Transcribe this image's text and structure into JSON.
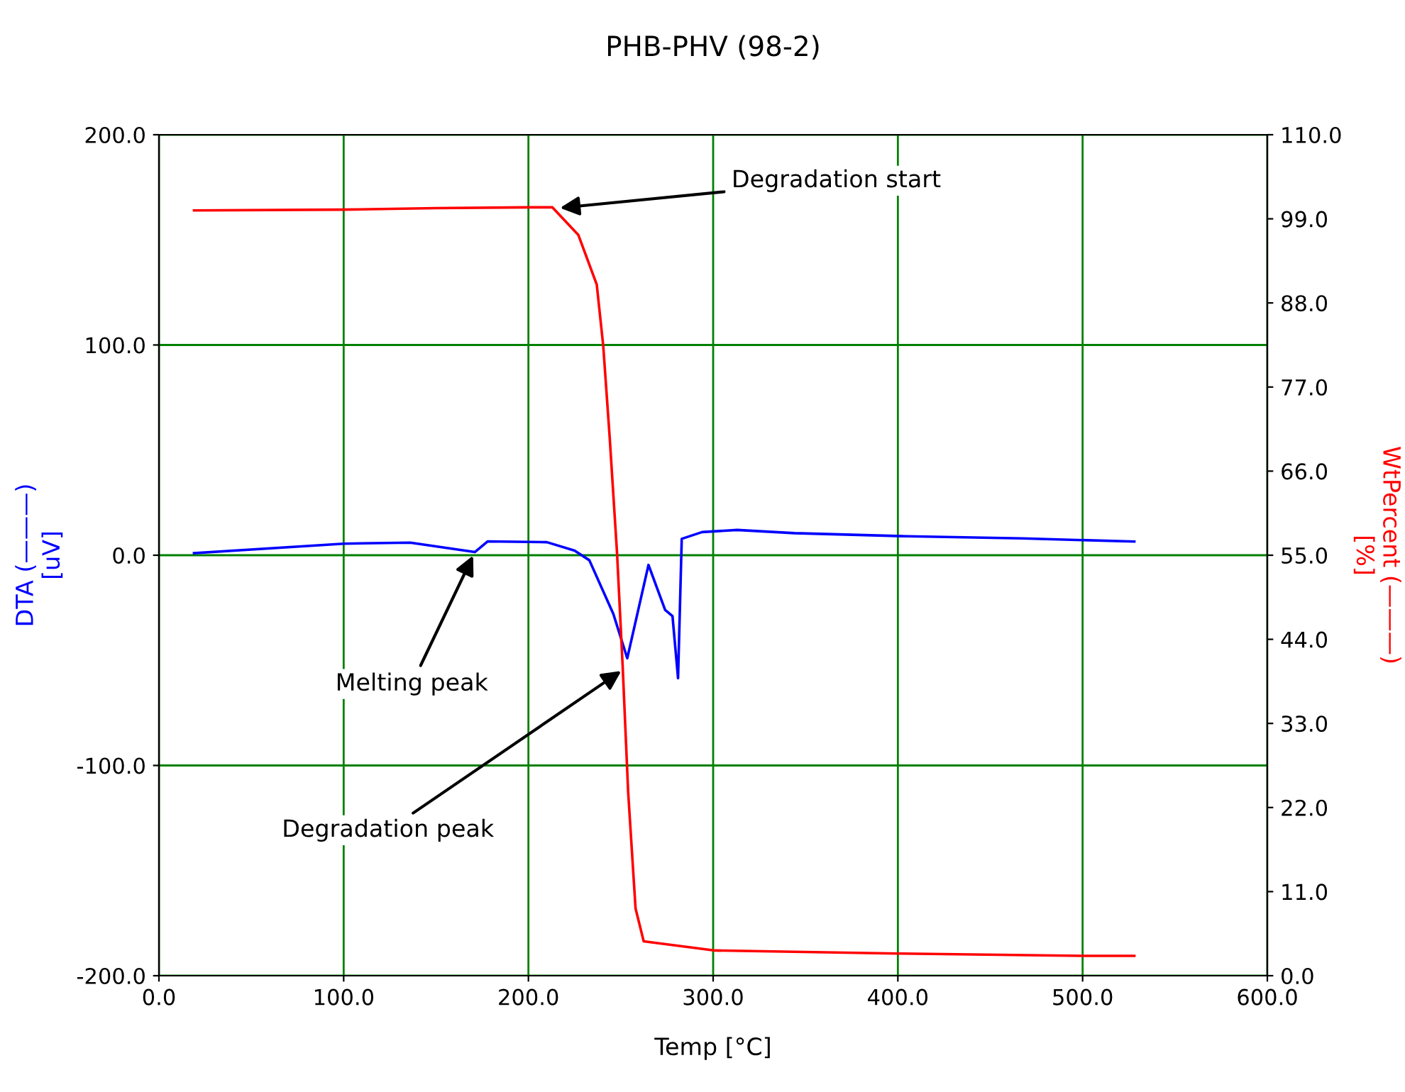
{
  "chart_data": {
    "type": "line",
    "title": "PHB-PHV (98-2)",
    "xlabel": "Temp [°C]",
    "ylabel": "DTA (———)\n[uV]",
    "y2label": "WtPercent (———)\n[%]",
    "series": [
      {
        "color": "#0000ff",
        "x": [
          19,
          100,
          136,
          171,
          178,
          210,
          225,
          233,
          246,
          253.5,
          265,
          274,
          278,
          281,
          283,
          294,
          313,
          344,
          405,
          467,
          528
        ],
        "values": [
          1.0,
          5.5,
          6,
          1.5,
          6.6,
          6.2,
          2.2,
          -2.4,
          -28,
          -49,
          -4.6,
          -26,
          -29,
          -58.5,
          7.8,
          11,
          12,
          10.5,
          9,
          8,
          6.5
        ]
      },
      {
        "color": "#ff0000",
        "axis": "y2",
        "x": [
          19,
          100,
          150,
          200,
          213,
          227,
          237,
          240.5,
          244,
          248,
          251,
          254,
          258,
          262.4,
          301,
          400,
          500,
          528
        ],
        "values": [
          100.1,
          100.2,
          100.4,
          100.5,
          100.5,
          96.9,
          90.4,
          82.4,
          70.4,
          55.2,
          40.6,
          24,
          8.8,
          4.5,
          3.3,
          2.9,
          2.6,
          2.6
        ]
      }
    ],
    "xlim": [
      0,
      600
    ],
    "xticks": [
      {
        "value": 0,
        "label": "0.0"
      },
      {
        "value": 100,
        "label": "100.0"
      },
      {
        "value": 200,
        "label": "200.0"
      },
      {
        "value": 300,
        "label": "300.0"
      },
      {
        "value": 400,
        "label": "400.0"
      },
      {
        "value": 500,
        "label": "500.0"
      },
      {
        "value": 600,
        "label": "600.0"
      }
    ],
    "ylim": [
      -200,
      200
    ],
    "yticks": [
      {
        "value": -200,
        "label": "-200.0"
      },
      {
        "value": -100,
        "label": "-100.0"
      },
      {
        "value": 0,
        "label": "0.0"
      },
      {
        "value": 100,
        "label": "100.0"
      },
      {
        "value": 200,
        "label": "200.0"
      }
    ],
    "y2lim": [
      0,
      110
    ],
    "y2ticks": [
      {
        "value": 0,
        "label": "0.0"
      },
      {
        "value": 11,
        "label": "11.0"
      },
      {
        "value": 22,
        "label": "22.0"
      },
      {
        "value": 33,
        "label": "33.0"
      },
      {
        "value": 44,
        "label": "44.0"
      },
      {
        "value": 55,
        "label": "55.0"
      },
      {
        "value": 66,
        "label": "66.0"
      },
      {
        "value": 77,
        "label": "77.0"
      },
      {
        "value": 88,
        "label": "88.0"
      },
      {
        "value": 99,
        "label": "99.0"
      },
      {
        "value": 110,
        "label": "110.0"
      }
    ],
    "grid": true,
    "annotations": [
      {
        "text": "Degradation start",
        "x": 215,
        "y": 165
      },
      {
        "text": "Melting peak",
        "x": 171,
        "y": 1.5
      },
      {
        "text": "Degradation peak",
        "x": 252,
        "y": -54
      }
    ]
  }
}
